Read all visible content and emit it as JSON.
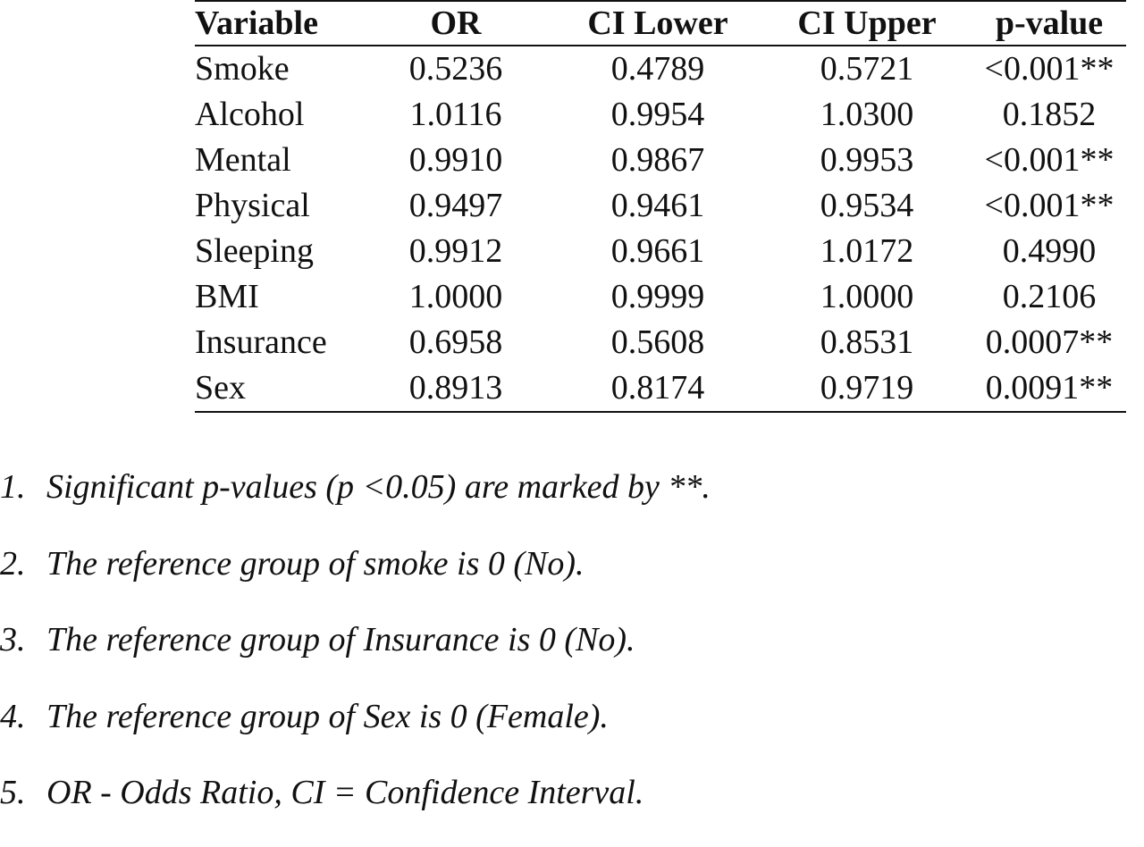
{
  "table": {
    "headers": [
      "Variable",
      "OR",
      "CI Lower",
      "CI Upper",
      "p-value"
    ],
    "rows": [
      [
        "Smoke",
        "0.5236",
        "0.4789",
        "0.5721",
        "<0.001**"
      ],
      [
        "Alcohol",
        "1.0116",
        "0.9954",
        "1.0300",
        "0.1852"
      ],
      [
        "Mental",
        "0.9910",
        "0.9867",
        "0.9953",
        "<0.001**"
      ],
      [
        "Physical",
        "0.9497",
        "0.9461",
        "0.9534",
        "<0.001**"
      ],
      [
        "Sleeping",
        "0.9912",
        "0.9661",
        "1.0172",
        "0.4990"
      ],
      [
        "BMI",
        "1.0000",
        "0.9999",
        "1.0000",
        "0.2106"
      ],
      [
        "Insurance",
        "0.6958",
        "0.5608",
        "0.8531",
        "0.0007**"
      ],
      [
        "Sex",
        "0.8913",
        "0.8174",
        "0.9719",
        "0.0091**"
      ]
    ]
  },
  "notes": [
    {
      "num": "1.",
      "text": "Significant p-values (p <0.05) are marked by **."
    },
    {
      "num": "2.",
      "text": "The reference group of smoke is 0 (No)."
    },
    {
      "num": "3.",
      "text": "The reference group of Insurance is 0 (No)."
    },
    {
      "num": "4.",
      "text": "The reference group of Sex is 0 (Female)."
    },
    {
      "num": "5.",
      "text": "OR - Odds Ratio, CI = Confidence Interval."
    }
  ]
}
